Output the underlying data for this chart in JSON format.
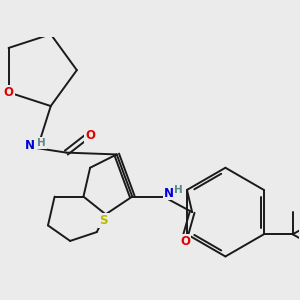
{
  "background_color": "#ebebeb",
  "bond_color": "#1a1a1a",
  "bond_width": 1.4,
  "dbo": 0.055,
  "atom_colors": {
    "O": "#e00000",
    "N": "#0000dd",
    "S": "#b8b800",
    "H": "#5a8a8a"
  }
}
